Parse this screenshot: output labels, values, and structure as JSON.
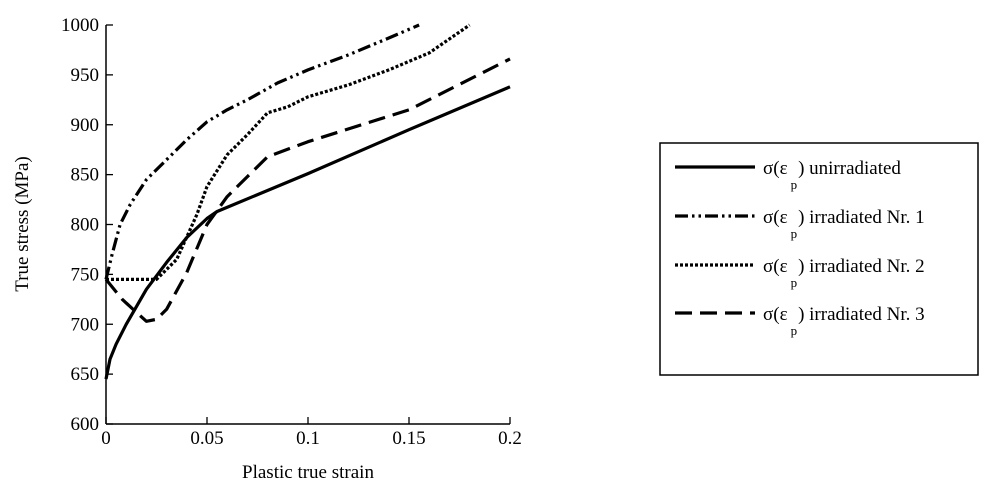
{
  "chart_data": {
    "type": "line",
    "xlabel": "Plastic true strain",
    "ylabel": "True stress (MPa)",
    "xlim": [
      0,
      0.2
    ],
    "ylim": [
      600,
      1000
    ],
    "xticks": [
      0,
      0.05,
      0.1,
      0.15,
      0.2
    ],
    "xtick_labels": [
      "0",
      "0.05",
      "0.1",
      "0.15",
      "0.2"
    ],
    "yticks": [
      600,
      650,
      700,
      750,
      800,
      850,
      900,
      950,
      1000
    ],
    "ytick_labels": [
      "600",
      "650",
      "700",
      "750",
      "800",
      "850",
      "900",
      "950",
      "1000"
    ],
    "grid": false,
    "legend_position": "right",
    "series": [
      {
        "name": "σ(ε_p) unirradiated",
        "legend_main": "σ(ε",
        "legend_sub": "p",
        "legend_tail": ") unirradiated",
        "style": "solid",
        "x": [
          0,
          0.002,
          0.005,
          0.01,
          0.02,
          0.03,
          0.04,
          0.05,
          0.055,
          0.1,
          0.15,
          0.2
        ],
        "y": [
          645,
          665,
          680,
          700,
          735,
          762,
          787,
          806,
          813,
          851,
          895,
          938
        ]
      },
      {
        "name": "σ(ε_p) irradiated Nr. 1",
        "legend_main": "σ(ε",
        "legend_sub": "p",
        "legend_tail": ") irradiated Nr. 1",
        "style": "dash-dot-dot",
        "x": [
          0,
          0.003,
          0.007,
          0.012,
          0.02,
          0.03,
          0.04,
          0.05,
          0.06,
          0.07,
          0.085,
          0.1,
          0.12,
          0.14,
          0.155
        ],
        "y": [
          745,
          770,
          800,
          820,
          845,
          865,
          885,
          903,
          915,
          925,
          942,
          955,
          970,
          987,
          1000
        ]
      },
      {
        "name": "σ(ε_p) irradiated Nr. 2",
        "legend_main": "σ(ε",
        "legend_sub": "p",
        "legend_tail": ") irradiated Nr. 2",
        "style": "dotted",
        "x": [
          0,
          0.002,
          0.01,
          0.025,
          0.035,
          0.045,
          0.05,
          0.06,
          0.07,
          0.08,
          0.09,
          0.1,
          0.12,
          0.14,
          0.16,
          0.18
        ],
        "y": [
          745,
          745,
          745,
          745,
          765,
          810,
          838,
          870,
          890,
          912,
          918,
          928,
          940,
          955,
          972,
          1000
        ]
      },
      {
        "name": "σ(ε_p) irradiated Nr. 3",
        "legend_main": "σ(ε",
        "legend_sub": "p",
        "legend_tail": ") irradiated Nr. 3",
        "style": "dashed",
        "x": [
          0,
          0.008,
          0.015,
          0.02,
          0.025,
          0.03,
          0.04,
          0.05,
          0.06,
          0.07,
          0.08,
          0.1,
          0.15,
          0.2
        ],
        "y": [
          745,
          725,
          712,
          703,
          705,
          715,
          752,
          800,
          828,
          848,
          868,
          883,
          915,
          966
        ]
      }
    ]
  }
}
